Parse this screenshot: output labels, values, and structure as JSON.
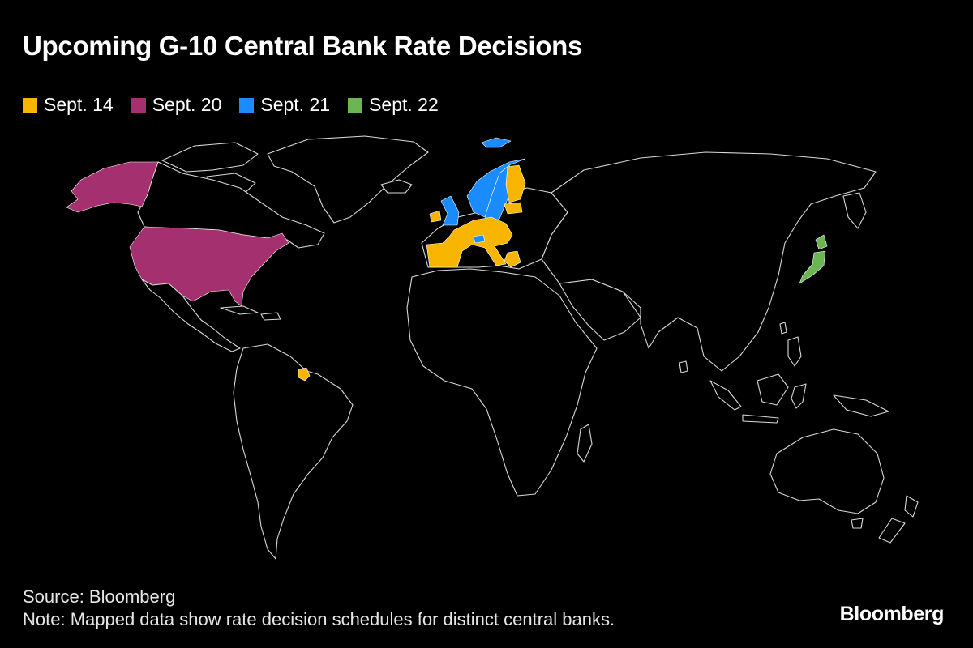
{
  "title": "Upcoming G-10 Central Bank Rate Decisions",
  "legend": [
    {
      "label": "Sept. 14",
      "color": "#f7b500"
    },
    {
      "label": "Sept. 20",
      "color": "#a5306f"
    },
    {
      "label": "Sept. 21",
      "color": "#1a8cff"
    },
    {
      "label": "Sept. 22",
      "color": "#6bb552"
    }
  ],
  "map": {
    "background": "#000000",
    "border_color": "#d9d9d9",
    "regions": [
      {
        "name": "Euro Area",
        "group": "Sept. 14"
      },
      {
        "name": "United States",
        "group": "Sept. 20"
      },
      {
        "name": "United Kingdom",
        "group": "Sept. 21"
      },
      {
        "name": "Sweden",
        "group": "Sept. 21"
      },
      {
        "name": "Norway",
        "group": "Sept. 21"
      },
      {
        "name": "Switzerland",
        "group": "Sept. 21"
      },
      {
        "name": "Japan",
        "group": "Sept. 22"
      }
    ]
  },
  "footer": {
    "source": "Source: Bloomberg",
    "note": "Note: Mapped data show rate decision schedules for distinct central banks.",
    "brand": "Bloomberg"
  }
}
